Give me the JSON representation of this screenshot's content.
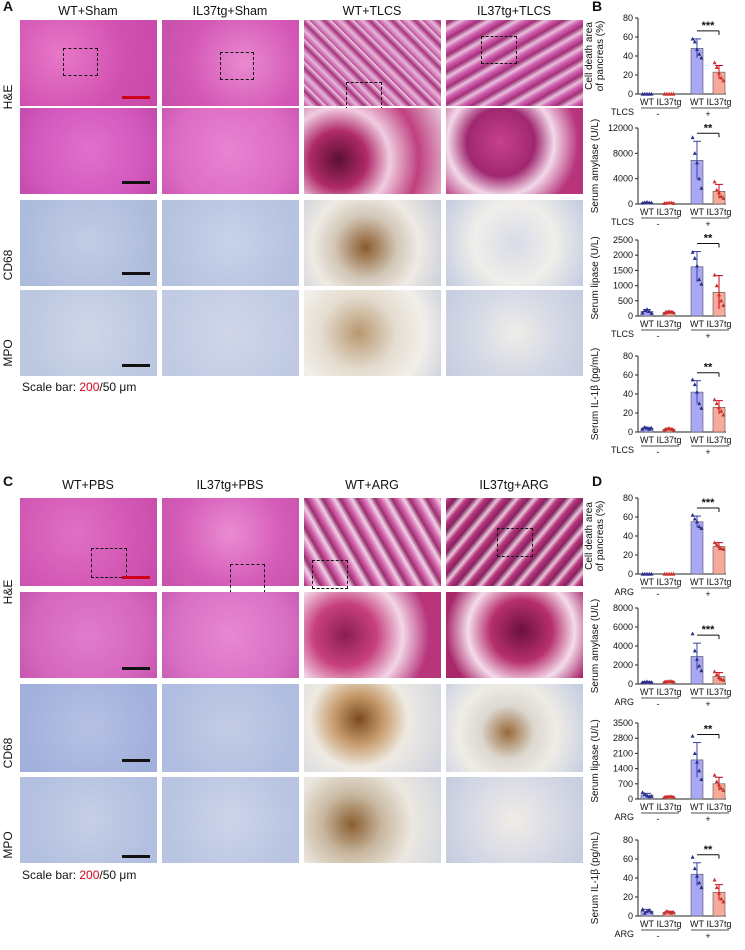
{
  "colors": {
    "wt_bar": "#a9a8f5",
    "il37_bar": "#f7a99a",
    "wt_point": "#2a2e8c",
    "il37_point": "#c8322a",
    "error_wt": "#3a3fa0",
    "error_il37": "#d0021b",
    "scale_red": "#d0021b",
    "he_bg": "#e35fb9",
    "ihc_bg": "#b9c7e3"
  },
  "panel_a": {
    "letter": "A",
    "columns": [
      "WT+Sham",
      "IL37tg+Sham",
      "WT+TLCS",
      "IL37tg+TLCS"
    ],
    "rows": [
      "H&E",
      "CD68",
      "MPO"
    ],
    "scale_prefix": "Scale bar: ",
    "scale_red": "200",
    "scale_suffix": "/50 μm"
  },
  "panel_c": {
    "letter": "C",
    "columns": [
      "WT+PBS",
      "IL37tg+PBS",
      "WT+ARG",
      "IL37tg+ARG"
    ],
    "rows": [
      "H&E",
      "CD68",
      "MPO"
    ],
    "scale_prefix": "Scale bar: ",
    "scale_red": "200",
    "scale_suffix": "/50 μm"
  },
  "panel_b_letter": "B",
  "panel_d_letter": "D",
  "chart_data": [
    {
      "type": "bar",
      "panel": "B",
      "ylabel_lines": [
        "Cell death area",
        "of pancreas (%)"
      ],
      "categories": [
        "WT",
        "IL37tg",
        "WT",
        "IL37tg"
      ],
      "treatment_label": "TLCS",
      "treatment_signs": [
        "-",
        "+"
      ],
      "values": [
        0,
        0,
        48,
        23
      ],
      "errors": [
        0,
        0,
        10,
        7
      ],
      "ylim": [
        0,
        80
      ],
      "ticks": [
        0,
        20,
        40,
        60,
        80
      ],
      "points": [
        [
          0,
          0,
          0,
          0,
          0
        ],
        [
          0,
          0,
          0,
          0,
          0
        ],
        [
          58,
          55,
          47,
          42,
          38
        ],
        [
          33,
          28,
          22,
          17,
          14
        ]
      ],
      "significance": "***"
    },
    {
      "type": "bar",
      "panel": "B",
      "ylabel_lines": [
        "Serum amylase (U/L)"
      ],
      "categories": [
        "WT",
        "IL37tg",
        "WT",
        "IL37tg"
      ],
      "treatment_label": "TLCS",
      "treatment_signs": [
        "-",
        "+"
      ],
      "values": [
        200,
        150,
        6900,
        2000
      ],
      "errors": [
        60,
        50,
        3000,
        1100
      ],
      "ylim": [
        0,
        12000
      ],
      "ticks": [
        0,
        4000,
        8000,
        12000
      ],
      "points": [
        [
          150,
          250,
          300,
          200,
          180
        ],
        [
          100,
          150,
          200,
          180,
          120
        ],
        [
          10500,
          8000,
          6500,
          4000,
          2500
        ],
        [
          3500,
          2200,
          1800,
          1200,
          900
        ]
      ],
      "significance": "**"
    },
    {
      "type": "bar",
      "panel": "B",
      "ylabel_lines": [
        "Serum lipase (U/L)"
      ],
      "categories": [
        "WT",
        "IL37tg",
        "WT",
        "IL37tg"
      ],
      "treatment_label": "TLCS",
      "treatment_signs": [
        "-",
        "+"
      ],
      "values": [
        150,
        120,
        1620,
        780
      ],
      "errors": [
        60,
        40,
        500,
        550
      ],
      "ylim": [
        0,
        2500
      ],
      "ticks": [
        0,
        500,
        1000,
        1500,
        2000,
        2500
      ],
      "points": [
        [
          100,
          180,
          220,
          150,
          90
        ],
        [
          90,
          120,
          150,
          130,
          110
        ],
        [
          2100,
          1900,
          1650,
          1200,
          1050
        ],
        [
          1350,
          1000,
          700,
          500,
          350
        ]
      ],
      "significance": "**"
    },
    {
      "type": "bar",
      "panel": "B",
      "ylabel_lines": [
        "Serum IL-1β (pg/mL)"
      ],
      "categories": [
        "WT",
        "IL37tg",
        "WT",
        "IL37tg"
      ],
      "treatment_label": "TLCS",
      "treatment_signs": [
        "-",
        "+"
      ],
      "values": [
        4,
        3,
        42,
        26
      ],
      "errors": [
        1,
        1,
        12,
        7
      ],
      "ylim": [
        0,
        80
      ],
      "ticks": [
        0,
        20,
        40,
        60,
        80
      ],
      "points": [
        [
          3,
          5,
          4,
          3,
          4
        ],
        [
          2,
          3,
          4,
          3,
          2
        ],
        [
          55,
          50,
          42,
          30,
          25
        ],
        [
          34,
          30,
          26,
          22,
          18
        ]
      ],
      "significance": "**"
    },
    {
      "type": "bar",
      "panel": "D",
      "ylabel_lines": [
        "Cell death area",
        "of pancreas (%)"
      ],
      "categories": [
        "WT",
        "IL37tg",
        "WT",
        "IL37tg"
      ],
      "treatment_label": "ARG",
      "treatment_signs": [
        "-",
        "+"
      ],
      "values": [
        0,
        0,
        55,
        29
      ],
      "errors": [
        0,
        0,
        6,
        4
      ],
      "ylim": [
        0,
        80
      ],
      "ticks": [
        0,
        20,
        40,
        60,
        80
      ],
      "points": [
        [
          0,
          0,
          0,
          0,
          0
        ],
        [
          0,
          0,
          0,
          0,
          0
        ],
        [
          62,
          58,
          55,
          50,
          48
        ],
        [
          33,
          31,
          29,
          27,
          26
        ]
      ],
      "significance": "***"
    },
    {
      "type": "bar",
      "panel": "D",
      "ylabel_lines": [
        "Serum amylase (U/L)"
      ],
      "categories": [
        "WT",
        "IL37tg",
        "WT",
        "IL37tg"
      ],
      "treatment_label": "ARG",
      "treatment_signs": [
        "-",
        "+"
      ],
      "values": [
        200,
        250,
        2900,
        800
      ],
      "errors": [
        60,
        70,
        1400,
        400
      ],
      "ylim": [
        0,
        8000
      ],
      "ticks": [
        0,
        2000,
        4000,
        6000,
        8000
      ],
      "points": [
        [
          150,
          200,
          250,
          200,
          180
        ],
        [
          200,
          250,
          300,
          280,
          220
        ],
        [
          5300,
          3500,
          2600,
          1900,
          1400
        ],
        [
          1300,
          1000,
          700,
          500,
          400
        ]
      ],
      "significance": "***"
    },
    {
      "type": "bar",
      "panel": "D",
      "ylabel_lines": [
        "Serum lipase (U/L)"
      ],
      "categories": [
        "WT",
        "IL37tg",
        "WT",
        "IL37tg"
      ],
      "treatment_label": "ARG",
      "treatment_signs": [
        "-",
        "+"
      ],
      "values": [
        180,
        100,
        1800,
        700
      ],
      "errors": [
        80,
        30,
        800,
        300
      ],
      "ylim": [
        0,
        3500
      ],
      "ticks": [
        0,
        700,
        1400,
        2100,
        2800,
        3500
      ],
      "points": [
        [
          300,
          220,
          150,
          100,
          130
        ],
        [
          80,
          100,
          120,
          110,
          90
        ],
        [
          2900,
          2100,
          1700,
          1300,
          900
        ],
        [
          1100,
          800,
          650,
          500,
          400
        ]
      ],
      "significance": "**"
    },
    {
      "type": "bar",
      "panel": "D",
      "ylabel_lines": [
        "Serum IL-1β (pg/mL)"
      ],
      "categories": [
        "WT",
        "IL37tg",
        "WT",
        "IL37tg"
      ],
      "treatment_label": "ARG",
      "treatment_signs": [
        "-",
        "+"
      ],
      "values": [
        5,
        4,
        44,
        25
      ],
      "errors": [
        2,
        1,
        12,
        8
      ],
      "ylim": [
        0,
        80
      ],
      "ticks": [
        0,
        20,
        40,
        60,
        80
      ],
      "points": [
        [
          7,
          3,
          5,
          6,
          4
        ],
        [
          3,
          5,
          4,
          3,
          4
        ],
        [
          62,
          50,
          42,
          35,
          30
        ],
        [
          38,
          30,
          24,
          18,
          15
        ]
      ],
      "significance": "**"
    }
  ]
}
